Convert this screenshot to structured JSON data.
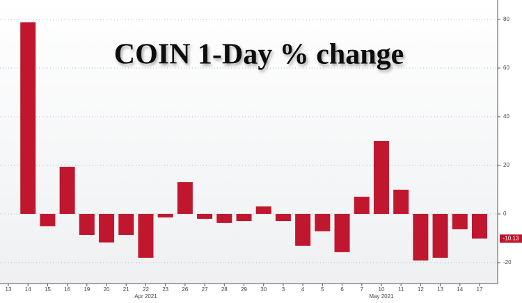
{
  "chart_data": {
    "type": "bar",
    "title": "COIN 1-Day % change",
    "categories": [
      "13",
      "14",
      "15",
      "16",
      "19",
      "20",
      "21",
      "22",
      "23",
      "26",
      "27",
      "28",
      "29",
      "30",
      "3",
      "4",
      "5",
      "6",
      "7",
      "10",
      "11",
      "12",
      "13",
      "14",
      "17"
    ],
    "months": [
      null,
      null,
      null,
      null,
      null,
      null,
      null,
      "Apr 2021",
      null,
      null,
      null,
      null,
      null,
      null,
      null,
      null,
      null,
      null,
      null,
      "May 2021",
      null,
      null,
      null,
      null,
      null
    ],
    "values": [
      null,
      78.8,
      -5,
      19.4,
      -8.6,
      -11.7,
      -8.6,
      -18,
      -1.4,
      13.1,
      -2,
      -3.7,
      -2.9,
      3.1,
      -2.9,
      -13.1,
      -7.1,
      -15.7,
      7.1,
      30,
      10,
      -19.1,
      -18,
      -6.3,
      -10.13
    ],
    "color": "#c0172f",
    "ylim": [
      -28.6,
      88
    ],
    "yticks": [
      -20,
      0,
      20,
      40,
      60,
      80
    ],
    "grid": true
  }
}
